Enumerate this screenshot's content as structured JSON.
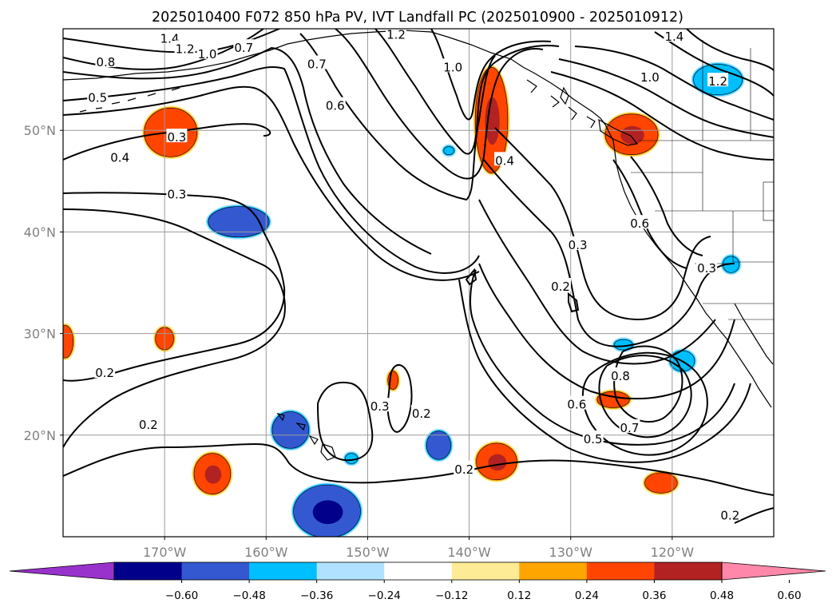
{
  "chart_data": {
    "type": "contour-map",
    "title": "2025010400 F072 850 hPa PV, IVT Landfall PC (2025010900 - 2025010912)",
    "grid": true,
    "x_axis": {
      "range_deg": [
        -180,
        -110
      ],
      "ticks": [
        {
          "value": -170,
          "label": "170°W"
        },
        {
          "value": -160,
          "label": "160°W"
        },
        {
          "value": -150,
          "label": "150°W"
        },
        {
          "value": -140,
          "label": "140°W"
        },
        {
          "value": -130,
          "label": "130°W"
        },
        {
          "value": -120,
          "label": "120°W"
        }
      ]
    },
    "y_axis": {
      "range_deg": [
        10,
        60
      ],
      "ticks": [
        {
          "value": 20,
          "label": "20°N"
        },
        {
          "value": 30,
          "label": "30°N"
        },
        {
          "value": 40,
          "label": "40°N"
        },
        {
          "value": 50,
          "label": "50°N"
        }
      ]
    },
    "colorbar": {
      "orientation": "horizontal",
      "extend": "both",
      "bounds": [
        -0.72,
        -0.6,
        -0.48,
        -0.36,
        -0.24,
        -0.12,
        0.12,
        0.24,
        0.36,
        0.48,
        0.6,
        0.72
      ],
      "colors": [
        "#9932cc",
        "#00008b",
        "#3458d0",
        "#00bfff",
        "#b0e2ff",
        "#ffffff",
        "#fdeb95",
        "#ffa500",
        "#ff4500",
        "#b22222",
        "#ff88aa"
      ],
      "under_color": "#9932cc",
      "over_color": "#ff88aa",
      "tick_labels": [
        "−0.60",
        "−0.48",
        "−0.36",
        "−0.24",
        "−0.12",
        "0.12",
        "0.24",
        "0.36",
        "0.48",
        "0.60"
      ]
    },
    "contour_levels": [
      0.2,
      0.3,
      0.4,
      0.5,
      0.6,
      0.7,
      0.8,
      1.0,
      1.2,
      1.4
    ],
    "contour_labels": [
      {
        "text": "1.4",
        "lon": -169.5,
        "lat": 59.0
      },
      {
        "text": "1.2",
        "lon": -168.0,
        "lat": 58.0
      },
      {
        "text": "1.0",
        "lon": -165.8,
        "lat": 57.5
      },
      {
        "text": "0.7",
        "lon": -162.2,
        "lat": 58.1
      },
      {
        "text": "0.8",
        "lon": -175.8,
        "lat": 56.7
      },
      {
        "text": "0.5",
        "lon": -176.6,
        "lat": 53.2
      },
      {
        "text": "0.3",
        "lon": -168.8,
        "lat": 49.3
      },
      {
        "text": "0.4",
        "lon": -174.4,
        "lat": 47.3
      },
      {
        "text": "0.3",
        "lon": -168.8,
        "lat": 43.7
      },
      {
        "text": "0.7",
        "lon": -155.0,
        "lat": 56.5
      },
      {
        "text": "0.6",
        "lon": -153.2,
        "lat": 52.4
      },
      {
        "text": "1.2",
        "lon": -147.2,
        "lat": 59.4
      },
      {
        "text": "1.0",
        "lon": -141.6,
        "lat": 56.2
      },
      {
        "text": "0.4",
        "lon": -136.5,
        "lat": 47.0
      },
      {
        "text": "1.0",
        "lon": -122.2,
        "lat": 55.2
      },
      {
        "text": "1.2",
        "lon": -115.5,
        "lat": 54.8
      },
      {
        "text": "1.4",
        "lon": -119.8,
        "lat": 59.2
      },
      {
        "text": "0.6",
        "lon": -123.2,
        "lat": 40.8
      },
      {
        "text": "0.3",
        "lon": -129.3,
        "lat": 38.7
      },
      {
        "text": "0.2",
        "lon": -131.0,
        "lat": 34.6
      },
      {
        "text": "0.3",
        "lon": -116.6,
        "lat": 36.4
      },
      {
        "text": "0.2",
        "lon": -175.9,
        "lat": 26.1
      },
      {
        "text": "0.2",
        "lon": -171.6,
        "lat": 21.0
      },
      {
        "text": "0.3",
        "lon": -148.8,
        "lat": 22.8
      },
      {
        "text": "0.2",
        "lon": -144.7,
        "lat": 22.1
      },
      {
        "text": "0.2",
        "lon": -140.5,
        "lat": 16.6
      },
      {
        "text": "0.8",
        "lon": -125.1,
        "lat": 25.8
      },
      {
        "text": "0.6",
        "lon": -129.4,
        "lat": 23.0
      },
      {
        "text": "0.7",
        "lon": -124.2,
        "lat": 20.7
      },
      {
        "text": "0.5",
        "lon": -127.8,
        "lat": 19.6
      },
      {
        "text": "0.2",
        "lon": -114.3,
        "lat": 12.1
      }
    ],
    "shaded_blobs": [
      {
        "sign": "positive",
        "value": 0.4,
        "lon": -169.4,
        "lat": 49.8,
        "rx_deg": 2.6,
        "ry_deg": 2.4
      },
      {
        "sign": "positive",
        "value": 0.42,
        "lon": -137.8,
        "lat": 51.0,
        "rx_deg": 1.6,
        "ry_deg": 5.2
      },
      {
        "sign": "positive",
        "value": 0.42,
        "lon": -124.0,
        "lat": 49.6,
        "rx_deg": 2.6,
        "ry_deg": 2.0
      },
      {
        "sign": "positive",
        "value": 0.38,
        "lon": -170.0,
        "lat": 29.5,
        "rx_deg": 0.9,
        "ry_deg": 1.1
      },
      {
        "sign": "positive",
        "value": 0.38,
        "lon": -179.8,
        "lat": 29.2,
        "rx_deg": 0.8,
        "ry_deg": 1.6
      },
      {
        "sign": "positive",
        "value": 0.42,
        "lon": -165.3,
        "lat": 16.2,
        "rx_deg": 1.8,
        "ry_deg": 2.0
      },
      {
        "sign": "positive",
        "value": 0.45,
        "lon": -137.3,
        "lat": 17.4,
        "rx_deg": 2.0,
        "ry_deg": 1.8
      },
      {
        "sign": "positive",
        "value": 0.38,
        "lon": -147.5,
        "lat": 25.4,
        "rx_deg": 0.5,
        "ry_deg": 0.9
      },
      {
        "sign": "positive",
        "value": 0.36,
        "lon": -125.8,
        "lat": 23.5,
        "rx_deg": 1.6,
        "ry_deg": 0.8
      },
      {
        "sign": "positive",
        "value": 0.36,
        "lon": -121.1,
        "lat": 15.3,
        "rx_deg": 1.6,
        "ry_deg": 1.0
      },
      {
        "sign": "negative",
        "value": -0.4,
        "lon": -162.7,
        "lat": 41.0,
        "rx_deg": 3.0,
        "ry_deg": 1.5
      },
      {
        "sign": "negative",
        "value": -0.4,
        "lon": -157.6,
        "lat": 20.5,
        "rx_deg": 1.8,
        "ry_deg": 1.8
      },
      {
        "sign": "negative",
        "value": -0.45,
        "lon": -154.0,
        "lat": 12.5,
        "rx_deg": 3.3,
        "ry_deg": 2.6
      },
      {
        "sign": "negative",
        "value": -0.4,
        "lon": -143.0,
        "lat": 19.0,
        "rx_deg": 1.2,
        "ry_deg": 1.4
      },
      {
        "sign": "negative",
        "value": -0.36,
        "lon": -115.5,
        "lat": 55.0,
        "rx_deg": 2.4,
        "ry_deg": 1.5
      },
      {
        "sign": "negative",
        "value": -0.36,
        "lon": -119.0,
        "lat": 27.3,
        "rx_deg": 1.2,
        "ry_deg": 1.0
      },
      {
        "sign": "negative",
        "value": -0.3,
        "lon": -124.8,
        "lat": 28.9,
        "rx_deg": 0.9,
        "ry_deg": 0.5
      },
      {
        "sign": "negative",
        "value": -0.3,
        "lon": -114.2,
        "lat": 36.8,
        "rx_deg": 0.8,
        "ry_deg": 0.8
      },
      {
        "sign": "negative",
        "value": -0.3,
        "lon": -151.6,
        "lat": 17.7,
        "rx_deg": 0.6,
        "ry_deg": 0.5
      },
      {
        "sign": "negative",
        "value": -0.25,
        "lon": -142.0,
        "lat": 48.0,
        "rx_deg": 0.5,
        "ry_deg": 0.4
      }
    ]
  }
}
